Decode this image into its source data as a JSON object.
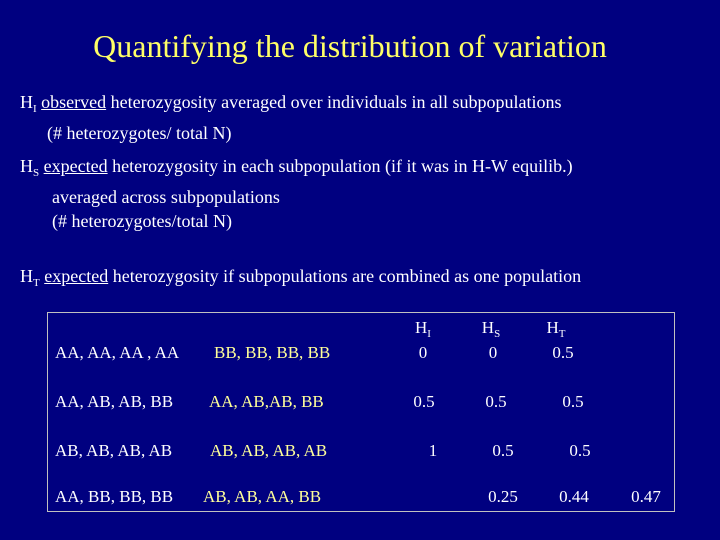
{
  "title": "Quantifying the distribution of variation",
  "hi": {
    "symbol": "H",
    "sub": "I",
    "keyword": "observed",
    "line1": " heterozygosity averaged over individuals in all subpopulations",
    "line2": "(# heterozygotes/ total N)"
  },
  "hs": {
    "symbol": "H",
    "sub": "S",
    "keyword": "expected",
    "line1": " heterozygosity in each subpopulation (if it was in H-W equilib.)",
    "line2": "averaged across subpopulations",
    "line3": "(# heterozygotes/total N)"
  },
  "ht": {
    "symbol": "H",
    "sub": "T",
    "keyword": "expected",
    "line1": " heterozygosity if subpopulations are combined as one population"
  },
  "table": {
    "headers": [
      {
        "symbol": "H",
        "sub": "I"
      },
      {
        "symbol": "H",
        "sub": "S"
      },
      {
        "symbol": "H",
        "sub": "T"
      }
    ],
    "rows": [
      {
        "pop1": "AA, AA, AA , AA",
        "pop2": "BB, BB, BB, BB",
        "hi": "0",
        "hs": "0",
        "ht": "0.5",
        "extra": ""
      },
      {
        "pop1": "AA, AB, AB, BB",
        "pop2": "AA, AB,AB, BB",
        "hi": "0.5",
        "hs": "0.5",
        "ht": "0.5",
        "extra": ""
      },
      {
        "pop1": "AB, AB, AB, AB",
        "pop2": "AB, AB, AB, AB",
        "hi": "1",
        "hs": "0.5",
        "ht": "0.5",
        "extra": ""
      },
      {
        "pop1": "AA, BB, BB, BB",
        "pop2": "AB, AB, AA, BB",
        "hi": "",
        "hs": "0.25",
        "ht": "0.44",
        "extra": "0.47"
      }
    ]
  }
}
